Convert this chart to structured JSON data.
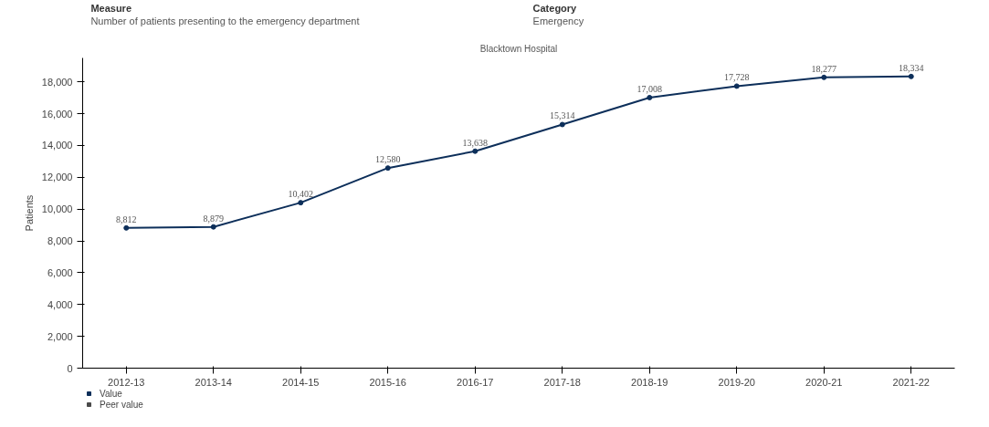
{
  "chart_data": {
    "type": "line",
    "title": "Blacktown Hospital",
    "ylabel": "Patients",
    "annotations": [
      "Measure",
      "Number of patients presenting to the emergency department",
      "Category",
      "Emergency"
    ],
    "categories": [
      "2012-13",
      "2013-14",
      "2014-15",
      "2015-16",
      "2016-17",
      "2017-18",
      "2018-19",
      "2019-20",
      "2020-21",
      "2021-22"
    ],
    "series": [
      {
        "name": "Value",
        "color": "#0d2f5a",
        "values": [
          8812,
          8879,
          10402,
          12580,
          13638,
          15314,
          17008,
          17728,
          18277,
          18334
        ],
        "value_labels": [
          "8,812",
          "8,879",
          "10,402",
          "12,580",
          "13,638",
          "15,314",
          "17,008",
          "17,728",
          "18,277",
          "18,334"
        ]
      },
      {
        "name": "Peer value",
        "color": "#4a4a4a",
        "values": [
          null,
          null,
          null,
          null,
          null,
          null,
          null,
          null,
          null,
          null
        ]
      }
    ],
    "ylim": [
      0,
      19500
    ],
    "yticks": [
      0,
      {
        "value": 2000,
        "label": "2,000"
      },
      {
        "value": 4000,
        "label": "4,000"
      },
      {
        "value": 6000,
        "label": "6,000"
      },
      {
        "value": 8000,
        "label": "8,000"
      },
      {
        "value": 10000,
        "label": "10,000"
      },
      {
        "value": 12000,
        "label": "12,000"
      },
      {
        "value": 14000,
        "label": "14,000"
      },
      {
        "value": 16000,
        "label": "16,000"
      },
      {
        "value": 18000,
        "label": "18,000"
      }
    ],
    "grid": false,
    "legend": "bottom left",
    "marker": "circle",
    "line_style": "solid"
  }
}
